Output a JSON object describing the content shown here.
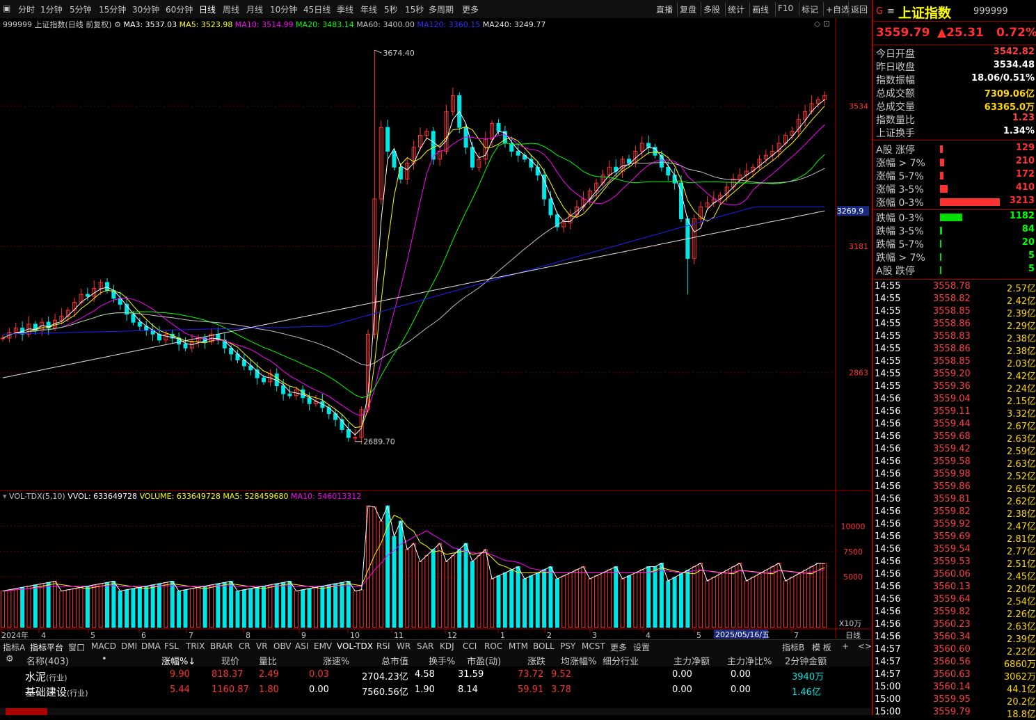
{
  "toolbar": {
    "items": [
      "分时",
      "1分钟",
      "5分钟",
      "15分钟",
      "30分钟",
      "60分钟",
      "日线",
      "周线",
      "月线",
      "10分钟",
      "45日线",
      "季线",
      "年线",
      "5秒",
      "15秒",
      "多周期",
      "更多"
    ],
    "active_index": 6,
    "right_items": [
      "直播",
      "复盘",
      "多股",
      "统计",
      "画线",
      "F10",
      "标记",
      "+自选",
      "返回"
    ]
  },
  "chart_header": {
    "title": "999999 上证指数(日线 前复权)",
    "ma3": "MA3: 3537.03",
    "ma5": "MA5: 3523.98",
    "ma10": "MA10: 3514.99",
    "ma20": "MA20: 3483.14",
    "ma60": "MA60: 3400.00",
    "ma120": "MA120: 3360.15",
    "ma240": "MA240: 3249.77"
  },
  "price_axis": {
    "labels": [
      "3534",
      "3181",
      "2863"
    ],
    "highlight": "3269.9",
    "max_label": "3674.40",
    "min_label": "2689.70"
  },
  "volume_header": {
    "title": "VOL-TDX(5,10)",
    "vvol": "VVOL: 633649728",
    "volume": "VOLUME: 633649728",
    "ma5": "MA5: 528459680",
    "ma10": "MA10: 546013312"
  },
  "volume_axis": {
    "labels": [
      "10000",
      "7500",
      "5000"
    ],
    "unit": "X10万"
  },
  "date_axis": {
    "labels": [
      "2024年",
      "4",
      "5",
      "6",
      "7",
      "8",
      "9",
      "10",
      "11",
      "12",
      "1",
      "2",
      "3",
      "4",
      "5",
      "7"
    ],
    "highlight": "2025/05/16/五",
    "period_label": "日线"
  },
  "colors": {
    "up": "#ff3232",
    "down": "#00e5e5",
    "ma3": "#ffffff",
    "ma5": "#ffff00",
    "ma10": "#ff00ff",
    "ma20": "#00ff00",
    "ma60": "#c0c0c0",
    "ma120": "#2020ff",
    "ma240": "#e0e0e0"
  },
  "chart_data": {
    "type": "line",
    "x_start": "2024-01",
    "x_end": "2025-07",
    "ylim": [
      2600,
      3720
    ],
    "close": [
      2950,
      2965,
      2975,
      2960,
      2985,
      2970,
      2990,
      2975,
      2995,
      3005,
      3020,
      3040,
      3060,
      3055,
      3075,
      3090,
      3070,
      3050,
      3035,
      3010,
      2990,
      2980,
      2970,
      2960,
      2945,
      2960,
      2950,
      2935,
      2925,
      2940,
      2950,
      2940,
      2960,
      2945,
      2925,
      2910,
      2895,
      2880,
      2870,
      2850,
      2840,
      2860,
      2830,
      2810,
      2805,
      2820,
      2800,
      2785,
      2790,
      2775,
      2760,
      2745,
      2720,
      2700,
      2700,
      2770,
      2960,
      3300,
      3480,
      3420,
      3380,
      3350,
      3390,
      3430,
      3460,
      3470,
      3400,
      3420,
      3520,
      3560,
      3480,
      3430,
      3380,
      3400,
      3450,
      3490,
      3470,
      3440,
      3420,
      3410,
      3400,
      3380,
      3360,
      3300,
      3260,
      3230,
      3240,
      3260,
      3280,
      3300,
      3320,
      3340,
      3360,
      3380,
      3370,
      3400,
      3390,
      3420,
      3440,
      3430,
      3410,
      3380,
      3360,
      3340,
      3250,
      3150,
      3250,
      3280,
      3290,
      3300,
      3310,
      3330,
      3350,
      3360,
      3370,
      3380,
      3400,
      3410,
      3420,
      3440,
      3460,
      3470,
      3500,
      3520,
      3540,
      3550,
      3560
    ],
    "max_price": 3674.4,
    "min_price": 2689.7
  },
  "quote": {
    "code_letter": "G",
    "name": "上证指数",
    "code": "999999",
    "price": "3559.79",
    "change": "▲25.31",
    "pct": "0.72%",
    "stats": [
      {
        "label": "今日开盘",
        "value": "3542.82",
        "color": "#ff4040"
      },
      {
        "label": "昨日收盘",
        "value": "3534.48",
        "color": "#ffffff"
      },
      {
        "label": "指数振幅",
        "value": "18.06/0.51%",
        "color": "#ffffff"
      },
      {
        "label": "总成交额",
        "value": "7309.06亿",
        "color": "#ffd700"
      },
      {
        "label": "总成交量",
        "value": "63365.0万",
        "color": "#ffd700"
      },
      {
        "label": "指数量比",
        "value": "1.23",
        "color": "#ff4040"
      },
      {
        "label": "上证换手",
        "value": "1.34%",
        "color": "#ffffff"
      }
    ],
    "breadth_up": [
      {
        "label": "A股 涨停",
        "value": "129",
        "frac": 0.02
      },
      {
        "label": "涨幅 > 7%",
        "value": "210",
        "frac": 0.03
      },
      {
        "label": "涨幅 5-7%",
        "value": "172",
        "frac": 0.025
      },
      {
        "label": "涨幅 3-5%",
        "value": "410",
        "frac": 0.06
      },
      {
        "label": "涨幅 0-3%",
        "value": "3213",
        "frac": 0.45
      }
    ],
    "breadth_down": [
      {
        "label": "跌幅 0-3%",
        "value": "1182",
        "frac": 0.17
      },
      {
        "label": "跌幅 3-5%",
        "value": "84",
        "frac": 0.015
      },
      {
        "label": "跌幅 5-7%",
        "value": "20",
        "frac": 0.005
      },
      {
        "label": "跌幅 > 7%",
        "value": "5",
        "frac": 0.003
      },
      {
        "label": "A股 跌停",
        "value": "5",
        "frac": 0.003
      }
    ],
    "ticks": [
      [
        "14:55",
        "3558.78",
        "2.57亿"
      ],
      [
        "14:55",
        "3558.82",
        "2.42亿"
      ],
      [
        "14:55",
        "3558.85",
        "2.39亿"
      ],
      [
        "14:55",
        "3558.86",
        "2.29亿"
      ],
      [
        "14:55",
        "3558.83",
        "2.38亿"
      ],
      [
        "14:55",
        "3558.86",
        "2.38亿"
      ],
      [
        "14:55",
        "3558.85",
        "2.03亿"
      ],
      [
        "14:55",
        "3559.20",
        "2.42亿"
      ],
      [
        "14:55",
        "3559.36",
        "2.24亿"
      ],
      [
        "14:56",
        "3559.04",
        "2.15亿"
      ],
      [
        "14:56",
        "3559.11",
        "3.32亿"
      ],
      [
        "14:56",
        "3559.44",
        "2.67亿"
      ],
      [
        "14:56",
        "3559.68",
        "2.63亿"
      ],
      [
        "14:56",
        "3559.42",
        "2.59亿"
      ],
      [
        "14:56",
        "3559.58",
        "2.63亿"
      ],
      [
        "14:56",
        "3559.98",
        "2.52亿"
      ],
      [
        "14:56",
        "3559.86",
        "2.65亿"
      ],
      [
        "14:56",
        "3559.81",
        "2.62亿"
      ],
      [
        "14:56",
        "3559.82",
        "2.38亿"
      ],
      [
        "14:56",
        "3559.92",
        "2.47亿"
      ],
      [
        "14:56",
        "3559.69",
        "2.81亿"
      ],
      [
        "14:56",
        "3559.54",
        "2.77亿"
      ],
      [
        "14:56",
        "3559.53",
        "2.51亿"
      ],
      [
        "14:56",
        "3560.06",
        "2.45亿"
      ],
      [
        "14:56",
        "3560.13",
        "2.20亿"
      ],
      [
        "14:56",
        "3559.64",
        "2.54亿"
      ],
      [
        "14:56",
        "3559.82",
        "2.26亿"
      ],
      [
        "14:56",
        "3560.23",
        "2.63亿"
      ],
      [
        "14:56",
        "3560.34",
        "2.39亿"
      ],
      [
        "14:57",
        "3560.60",
        "2.22亿"
      ],
      [
        "14:57",
        "3560.56",
        "6860万"
      ],
      [
        "14:57",
        "3560.63",
        "3062万"
      ],
      [
        "15:00",
        "3560.14",
        "44.1亿"
      ],
      [
        "15:00",
        "3559.95",
        "20.2亿"
      ],
      [
        "15:00",
        "3559.79",
        "18.8亿"
      ]
    ]
  },
  "tabs": [
    "指标A",
    "指标平台",
    "窗口",
    "MACD",
    "DMI",
    "DMA",
    "FSL",
    "TRIX",
    "BRAR",
    "CR",
    "VR",
    "OBV",
    "ASI",
    "EMV",
    "VOL-TDX",
    "RSI",
    "WR",
    "SAR",
    "KDJ",
    "CCI",
    "ROC",
    "MTM",
    "BOLL",
    "PSY",
    "MCST",
    "更多",
    "设置"
  ],
  "tabs_right": [
    "指标B",
    "模 板",
    "+",
    "<",
    ">"
  ],
  "table": {
    "headers": [
      "名称(403)",
      "•",
      "涨幅%↓",
      "现价",
      "量比",
      "涨速%",
      "总市值",
      "换手%",
      "市盈(动)",
      "涨跌",
      "均涨幅%",
      "细分行业",
      "主力净额",
      "主力净比%",
      "2分钟金额"
    ],
    "rows": [
      {
        "name": "水泥",
        "tag": "(行业)",
        "pct": "9.90",
        "price": "818.37",
        "vr": "2.49",
        "speed": "0.03",
        "cap": "2704.23亿",
        "turn": "4.58",
        "pe": "31.59",
        "chg": "73.72",
        "avg": "9.52",
        "ind": "",
        "net": "0.00",
        "netpct": "0.00",
        "amt2": "3940万"
      },
      {
        "name": "基础建设",
        "tag": "(行业)",
        "pct": "5.44",
        "price": "1160.87",
        "vr": "1.80",
        "speed": "0.00",
        "cap": "7560.56亿",
        "turn": "1.90",
        "pe": "8.14",
        "chg": "59.91",
        "avg": "3.78",
        "ind": "",
        "net": "0.00",
        "netpct": "0.00",
        "amt2": "1.46亿"
      }
    ]
  }
}
